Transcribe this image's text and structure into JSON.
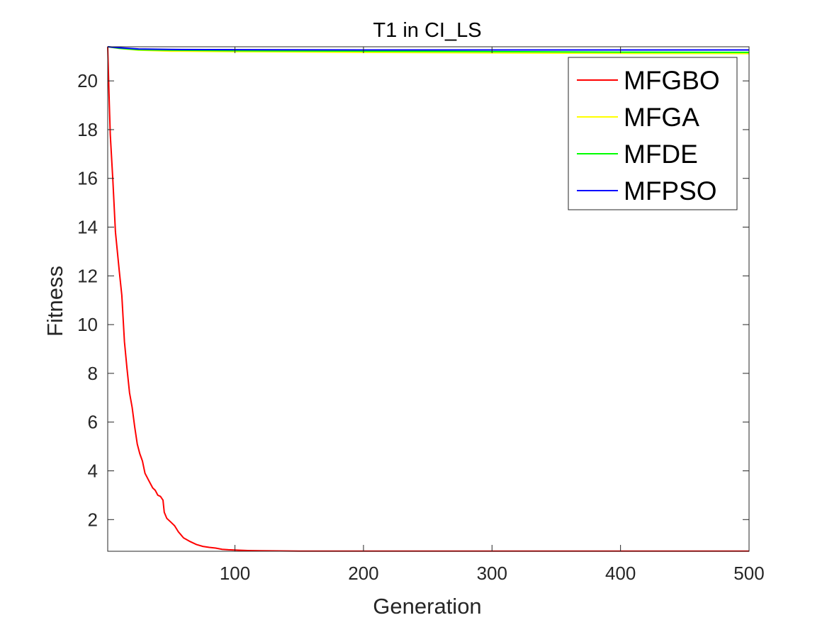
{
  "chart_data": {
    "type": "line",
    "title": "T1 in CI_LS",
    "xlabel": "Generation",
    "ylabel": "Fitness",
    "xlim": [
      1,
      500
    ],
    "ylim": [
      0.7,
      21.4
    ],
    "xticks": [
      100,
      200,
      300,
      400,
      500
    ],
    "yticks": [
      2,
      4,
      6,
      8,
      10,
      12,
      14,
      16,
      18,
      20
    ],
    "grid": false,
    "legend_location": "top-right",
    "series": [
      {
        "name": "MFGBO",
        "color": "#ff0000",
        "points": [
          [
            1,
            21.4
          ],
          [
            2,
            19.5
          ],
          [
            3,
            17.8
          ],
          [
            5,
            15.9
          ],
          [
            7,
            13.8
          ],
          [
            10,
            12.2
          ],
          [
            12,
            11.2
          ],
          [
            14,
            9.3
          ],
          [
            16,
            8.2
          ],
          [
            18,
            7.2
          ],
          [
            20,
            6.6
          ],
          [
            22,
            5.8
          ],
          [
            24,
            5.1
          ],
          [
            26,
            4.7
          ],
          [
            28,
            4.4
          ],
          [
            30,
            3.9
          ],
          [
            33,
            3.6
          ],
          [
            36,
            3.3
          ],
          [
            38,
            3.2
          ],
          [
            40,
            3.0
          ],
          [
            42,
            2.95
          ],
          [
            44,
            2.8
          ],
          [
            45,
            2.3
          ],
          [
            47,
            2.05
          ],
          [
            50,
            1.9
          ],
          [
            53,
            1.75
          ],
          [
            56,
            1.5
          ],
          [
            60,
            1.25
          ],
          [
            65,
            1.1
          ],
          [
            70,
            0.98
          ],
          [
            75,
            0.9
          ],
          [
            80,
            0.86
          ],
          [
            85,
            0.83
          ],
          [
            90,
            0.78
          ],
          [
            95,
            0.76
          ],
          [
            100,
            0.75
          ],
          [
            110,
            0.73
          ],
          [
            120,
            0.72
          ],
          [
            150,
            0.71
          ],
          [
            200,
            0.71
          ],
          [
            300,
            0.71
          ],
          [
            400,
            0.71
          ],
          [
            500,
            0.71
          ]
        ]
      },
      {
        "name": "MFGA",
        "color": "#ffff00",
        "points": [
          [
            1,
            21.4
          ],
          [
            10,
            21.33
          ],
          [
            25,
            21.26
          ],
          [
            50,
            21.22
          ],
          [
            100,
            21.2
          ],
          [
            200,
            21.17
          ],
          [
            300,
            21.15
          ],
          [
            400,
            21.13
          ],
          [
            500,
            21.12
          ]
        ]
      },
      {
        "name": "MFDE",
        "color": "#00ff00",
        "points": [
          [
            1,
            21.4
          ],
          [
            10,
            21.34
          ],
          [
            25,
            21.28
          ],
          [
            50,
            21.26
          ],
          [
            100,
            21.24
          ],
          [
            200,
            21.22
          ],
          [
            300,
            21.2
          ],
          [
            400,
            21.18
          ],
          [
            500,
            21.17
          ]
        ]
      },
      {
        "name": "MFPSO",
        "color": "#0000ff",
        "points": [
          [
            1,
            21.4
          ],
          [
            10,
            21.36
          ],
          [
            25,
            21.31
          ],
          [
            50,
            21.29
          ],
          [
            100,
            21.28
          ],
          [
            200,
            21.27
          ],
          [
            300,
            21.27
          ],
          [
            400,
            21.27
          ],
          [
            500,
            21.27
          ]
        ]
      }
    ]
  }
}
